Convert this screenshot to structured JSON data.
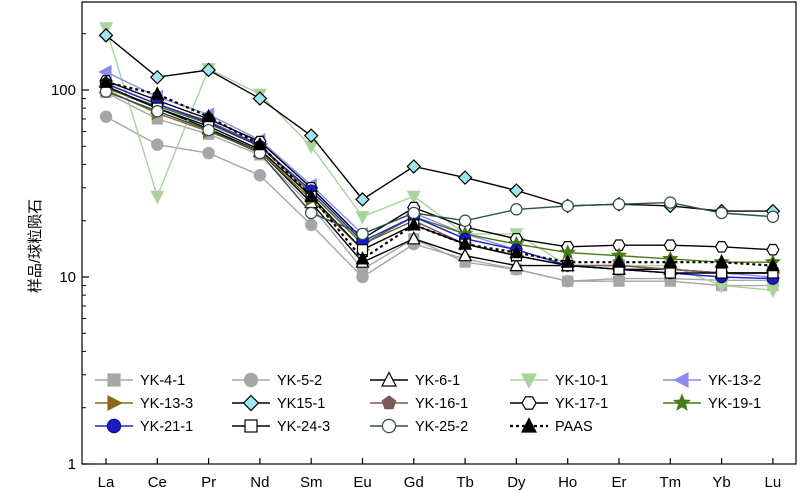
{
  "chart_data": {
    "type": "line",
    "title": "",
    "xlabel": "",
    "ylabel": "样品/球粒陨石",
    "yscale": "log",
    "ylim": [
      1,
      300
    ],
    "y_ticks": [
      "1",
      "10",
      "100"
    ],
    "categories": [
      "La",
      "Ce",
      "Pr",
      "Nd",
      "Sm",
      "Eu",
      "Gd",
      "Tb",
      "Dy",
      "Ho",
      "Er",
      "Tm",
      "Yb",
      "Lu"
    ],
    "series": [
      {
        "name": "YK-4-1",
        "marker": "square",
        "color": "#a6a6a6",
        "line": "#a6a6a6",
        "dash": "",
        "values": [
          97,
          70,
          58,
          45,
          24,
          11,
          16,
          12,
          11,
          9.5,
          9.5,
          9.5,
          9,
          9
        ]
      },
      {
        "name": "YK-5-2",
        "marker": "circle",
        "color": "#a6a6a6",
        "line": "#a6a6a6",
        "dash": "",
        "values": [
          72,
          51,
          46,
          35,
          19,
          10,
          15,
          12.5,
          11,
          9.5,
          9.8,
          9.8,
          9.6,
          9.6
        ]
      },
      {
        "name": "YK-6-1",
        "marker": "triangle",
        "color": "#ffffff",
        "line": "#000000",
        "dash": "",
        "values": [
          103,
          80,
          62,
          47,
          25,
          12,
          16,
          13,
          11.5,
          11.5,
          11,
          11,
          10.5,
          10.5
        ]
      },
      {
        "name": "YK-10-1",
        "marker": "triangle-down",
        "color": "#a8d49a",
        "line": "#a8d49a",
        "dash": "",
        "values": [
          215,
          27,
          130,
          95,
          50,
          21,
          27,
          17,
          17,
          11.5,
          11.5,
          11.5,
          9,
          8.5
        ]
      },
      {
        "name": "YK-13-2",
        "marker": "triangle-left",
        "color": "#8c8cf0",
        "line": "#8c8cf0",
        "dash": "",
        "values": [
          125,
          92,
          74,
          54,
          31,
          17,
          22,
          17,
          14,
          11.5,
          11.5,
          11,
          10.5,
          10
        ]
      },
      {
        "name": "YK-13-3",
        "marker": "triangle-right",
        "color": "#8b6914",
        "line": "#8b6914",
        "dash": "",
        "values": [
          100,
          75,
          60,
          47,
          26,
          14,
          19,
          15,
          13,
          11.5,
          11.5,
          11,
          10.5,
          10.5
        ]
      },
      {
        "name": "YK15-1",
        "marker": "diamond",
        "color": "#a0e6f0",
        "line": "#000000",
        "dash": "",
        "values": [
          196,
          117,
          128,
          90,
          57,
          26,
          39,
          34,
          29,
          24,
          24.5,
          24,
          22.5,
          22.5
        ]
      },
      {
        "name": "YK-16-1",
        "marker": "pentagon",
        "color": "#7a5a5a",
        "line": "#7a5a5a",
        "dash": "",
        "values": [
          108,
          84,
          68,
          51,
          28,
          15,
          20,
          15,
          13,
          11.5,
          11.5,
          11,
          10.5,
          10.5
        ]
      },
      {
        "name": "YK-17-1",
        "marker": "hexagon",
        "color": "#ffffff",
        "line": "#000000",
        "dash": "",
        "values": [
          112,
          88,
          70,
          53,
          30,
          16,
          23.5,
          18.5,
          16,
          14.5,
          14.8,
          14.8,
          14.5,
          14
        ]
      },
      {
        "name": "YK-19-1",
        "marker": "star",
        "color": "#4a7a1a",
        "line": "#4a7a1a",
        "dash": "",
        "values": [
          102,
          82,
          66,
          50,
          28,
          15,
          21,
          17,
          15,
          13.5,
          13,
          12.5,
          12,
          12
        ]
      },
      {
        "name": "YK-21-1",
        "marker": "ball",
        "color": "#2020cc",
        "line": "#2020cc",
        "dash": "",
        "values": [
          108,
          84,
          67,
          50,
          29,
          15.5,
          21,
          16,
          14,
          11.5,
          11,
          10.5,
          10,
          9.8
        ]
      },
      {
        "name": "YK-24-3",
        "marker": "square-open",
        "color": "#ffffff",
        "line": "#000000",
        "dash": "",
        "values": [
          105,
          80,
          64,
          48,
          27,
          14,
          19,
          15,
          13,
          11.5,
          11,
          10.5,
          10.5,
          10.5
        ]
      },
      {
        "name": "YK-25-2",
        "marker": "circle-open",
        "color": "#ffffff",
        "line": "#2f4f4f",
        "dash": "",
        "values": [
          98,
          77,
          61,
          46,
          22,
          17,
          22,
          20,
          23,
          24,
          24.5,
          25,
          22,
          21
        ]
      },
      {
        "name": "PAAS",
        "marker": "triangle",
        "color": "#000000",
        "line": "#000000",
        "dash": "3,3",
        "values": [
          110,
          95,
          72,
          51,
          27,
          12.5,
          19,
          15,
          13.5,
          12,
          12,
          12,
          12,
          11.5
        ]
      }
    ]
  }
}
